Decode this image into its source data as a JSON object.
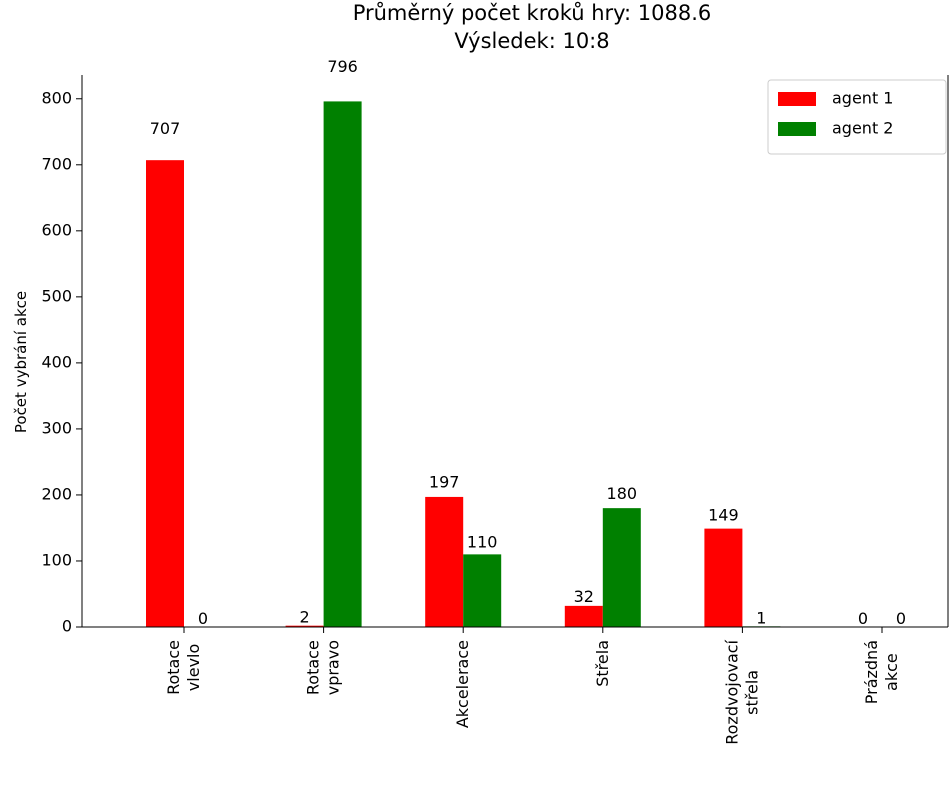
{
  "chart_data": {
    "type": "bar",
    "title": "Průměrný počet kroků hry: 1088.6",
    "subtitle": "Výsledek: 10:8",
    "y_label": "Počet vybrání akce",
    "categories": [
      "Rotace\nvlevlo",
      "Rotace\nvpravo",
      "Akcelerace",
      "Střela",
      "Rozdvojovací\nstřela",
      "Prázdná\nakce"
    ],
    "series": [
      {
        "name": "agent 1",
        "color": "#ff0000",
        "values": [
          707,
          2,
          197,
          32,
          149,
          0
        ]
      },
      {
        "name": "agent 2",
        "color": "#008000",
        "values": [
          0,
          796,
          110,
          180,
          1,
          0
        ]
      }
    ],
    "ylim": [
      0,
      836
    ],
    "yticks": [
      0,
      100,
      200,
      300,
      400,
      500,
      600,
      700,
      800
    ],
    "legend": "upper right"
  }
}
